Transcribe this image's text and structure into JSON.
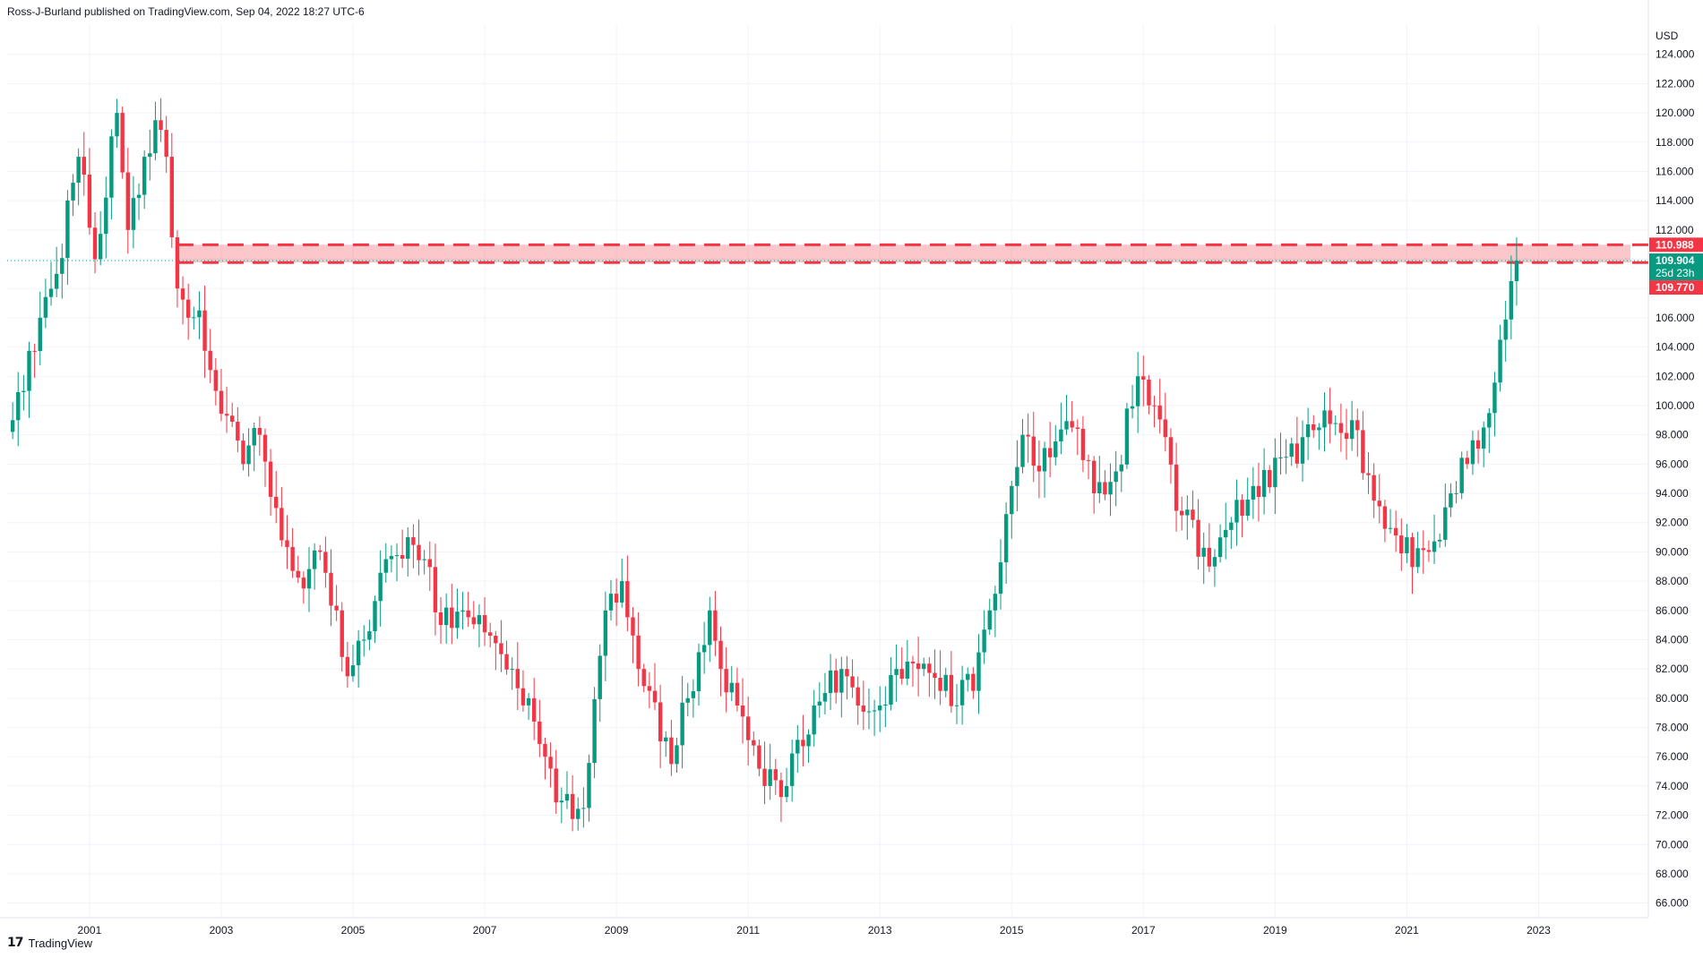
{
  "header": {
    "publisher_line": "Ross-J-Burland published on TradingView.com, Sep 04, 2022 18:27 UTC-6"
  },
  "footer": {
    "brand_mark": "17",
    "brand_name": "TradingView"
  },
  "chart_data": {
    "type": "candlestick",
    "currency": "USD",
    "timeframe": "monthly",
    "ylim": [
      65,
      126
    ],
    "y_ticks": [
      66,
      68,
      70,
      72,
      74,
      76,
      78,
      80,
      82,
      84,
      86,
      88,
      90,
      92,
      94,
      96,
      98,
      100,
      102,
      104,
      106,
      108,
      110,
      112,
      114,
      116,
      118,
      120,
      122,
      124
    ],
    "y_tick_labels": [
      "66.000",
      "68.000",
      "70.000",
      "72.000",
      "74.000",
      "76.000",
      "78.000",
      "80.000",
      "82.000",
      "84.000",
      "86.000",
      "88.000",
      "90.000",
      "92.000",
      "94.000",
      "96.000",
      "98.000",
      "100.000",
      "102.000",
      "104.000",
      "106.000",
      "108.000",
      "110.000",
      "112.000",
      "114.000",
      "116.000",
      "118.000",
      "120.000",
      "122.000",
      "124.000"
    ],
    "x_ticks": [
      "2001",
      "2003",
      "2005",
      "2007",
      "2009",
      "2011",
      "2013",
      "2015",
      "2017",
      "2019",
      "2021",
      "2023"
    ],
    "x_start": "1999-10",
    "x_end": "2024-09",
    "grid": true,
    "up_color": "#089981",
    "down_color": "#f23645",
    "key_points": [
      {
        "d": "1999-11",
        "v": 99
      },
      {
        "d": "2000-01",
        "v": 101
      },
      {
        "d": "2000-04",
        "v": 106
      },
      {
        "d": "2000-07",
        "v": 109
      },
      {
        "d": "2000-11",
        "v": 117
      },
      {
        "d": "2001-02",
        "v": 110
      },
      {
        "d": "2001-06",
        "v": 120
      },
      {
        "d": "2001-08",
        "v": 112
      },
      {
        "d": "2001-11",
        "v": 117
      },
      {
        "d": "2002-01",
        "v": 119.5
      },
      {
        "d": "2002-03",
        "v": 117
      },
      {
        "d": "2002-05",
        "v": 108
      },
      {
        "d": "2002-07",
        "v": 106
      },
      {
        "d": "2002-09",
        "v": 106.5
      },
      {
        "d": "2002-12",
        "v": 101
      },
      {
        "d": "2003-05",
        "v": 96
      },
      {
        "d": "2003-08",
        "v": 98
      },
      {
        "d": "2003-11",
        "v": 93
      },
      {
        "d": "2004-04",
        "v": 87.5
      },
      {
        "d": "2004-07",
        "v": 90
      },
      {
        "d": "2004-10",
        "v": 86
      },
      {
        "d": "2004-12",
        "v": 81.5
      },
      {
        "d": "2005-03",
        "v": 84
      },
      {
        "d": "2005-07",
        "v": 89.5
      },
      {
        "d": "2005-11",
        "v": 91
      },
      {
        "d": "2006-02",
        "v": 89.5
      },
      {
        "d": "2006-05",
        "v": 85
      },
      {
        "d": "2006-09",
        "v": 86
      },
      {
        "d": "2007-01",
        "v": 84.5
      },
      {
        "d": "2007-06",
        "v": 82
      },
      {
        "d": "2007-09",
        "v": 80
      },
      {
        "d": "2007-12",
        "v": 76
      },
      {
        "d": "2008-03",
        "v": 73
      },
      {
        "d": "2008-07",
        "v": 72.5
      },
      {
        "d": "2008-11",
        "v": 86
      },
      {
        "d": "2009-02",
        "v": 88
      },
      {
        "d": "2009-05",
        "v": 82
      },
      {
        "d": "2009-11",
        "v": 75.5
      },
      {
        "d": "2010-02",
        "v": 80
      },
      {
        "d": "2010-06",
        "v": 86
      },
      {
        "d": "2010-08",
        "v": 82
      },
      {
        "d": "2010-11",
        "v": 79.5
      },
      {
        "d": "2011-04",
        "v": 74
      },
      {
        "d": "2011-08",
        "v": 74
      },
      {
        "d": "2012-01",
        "v": 79.5
      },
      {
        "d": "2012-06",
        "v": 82
      },
      {
        "d": "2012-09",
        "v": 79.5
      },
      {
        "d": "2013-01",
        "v": 79.5
      },
      {
        "d": "2013-06",
        "v": 82.5
      },
      {
        "d": "2013-12",
        "v": 80.5
      },
      {
        "d": "2014-06",
        "v": 80.5
      },
      {
        "d": "2014-09",
        "v": 86
      },
      {
        "d": "2015-01",
        "v": 94.5
      },
      {
        "d": "2015-03",
        "v": 98
      },
      {
        "d": "2015-06",
        "v": 95.5
      },
      {
        "d": "2015-12",
        "v": 98.5
      },
      {
        "d": "2016-04",
        "v": 94
      },
      {
        "d": "2016-08",
        "v": 95.5
      },
      {
        "d": "2016-12",
        "v": 102
      },
      {
        "d": "2017-03",
        "v": 100
      },
      {
        "d": "2017-08",
        "v": 92.5
      },
      {
        "d": "2018-01",
        "v": 89
      },
      {
        "d": "2018-04",
        "v": 91.5
      },
      {
        "d": "2018-09",
        "v": 94.5
      },
      {
        "d": "2019-03",
        "v": 96.5
      },
      {
        "d": "2019-09",
        "v": 98.5
      },
      {
        "d": "2020-03",
        "v": 99
      },
      {
        "d": "2020-07",
        "v": 93.5
      },
      {
        "d": "2020-12",
        "v": 89.9
      },
      {
        "d": "2021-05",
        "v": 90
      },
      {
        "d": "2021-09",
        "v": 94
      },
      {
        "d": "2021-12",
        "v": 96
      },
      {
        "d": "2022-03",
        "v": 98.5
      },
      {
        "d": "2022-06",
        "v": 104.5
      },
      {
        "d": "2022-08",
        "v": 108.5
      },
      {
        "d": "2022-09",
        "v": 109.904
      }
    ],
    "resistance_zone": {
      "low": 109.77,
      "high": 110.988,
      "start": "2002-05"
    },
    "price_labels": [
      {
        "value": 110.988,
        "text": "110.988",
        "color": "#f23645"
      },
      {
        "value": 109.904,
        "text": "109.904",
        "sub": "25d 23h",
        "color": "#089981"
      },
      {
        "value": 109.77,
        "text": "109.770",
        "color": "#f23645"
      }
    ]
  }
}
